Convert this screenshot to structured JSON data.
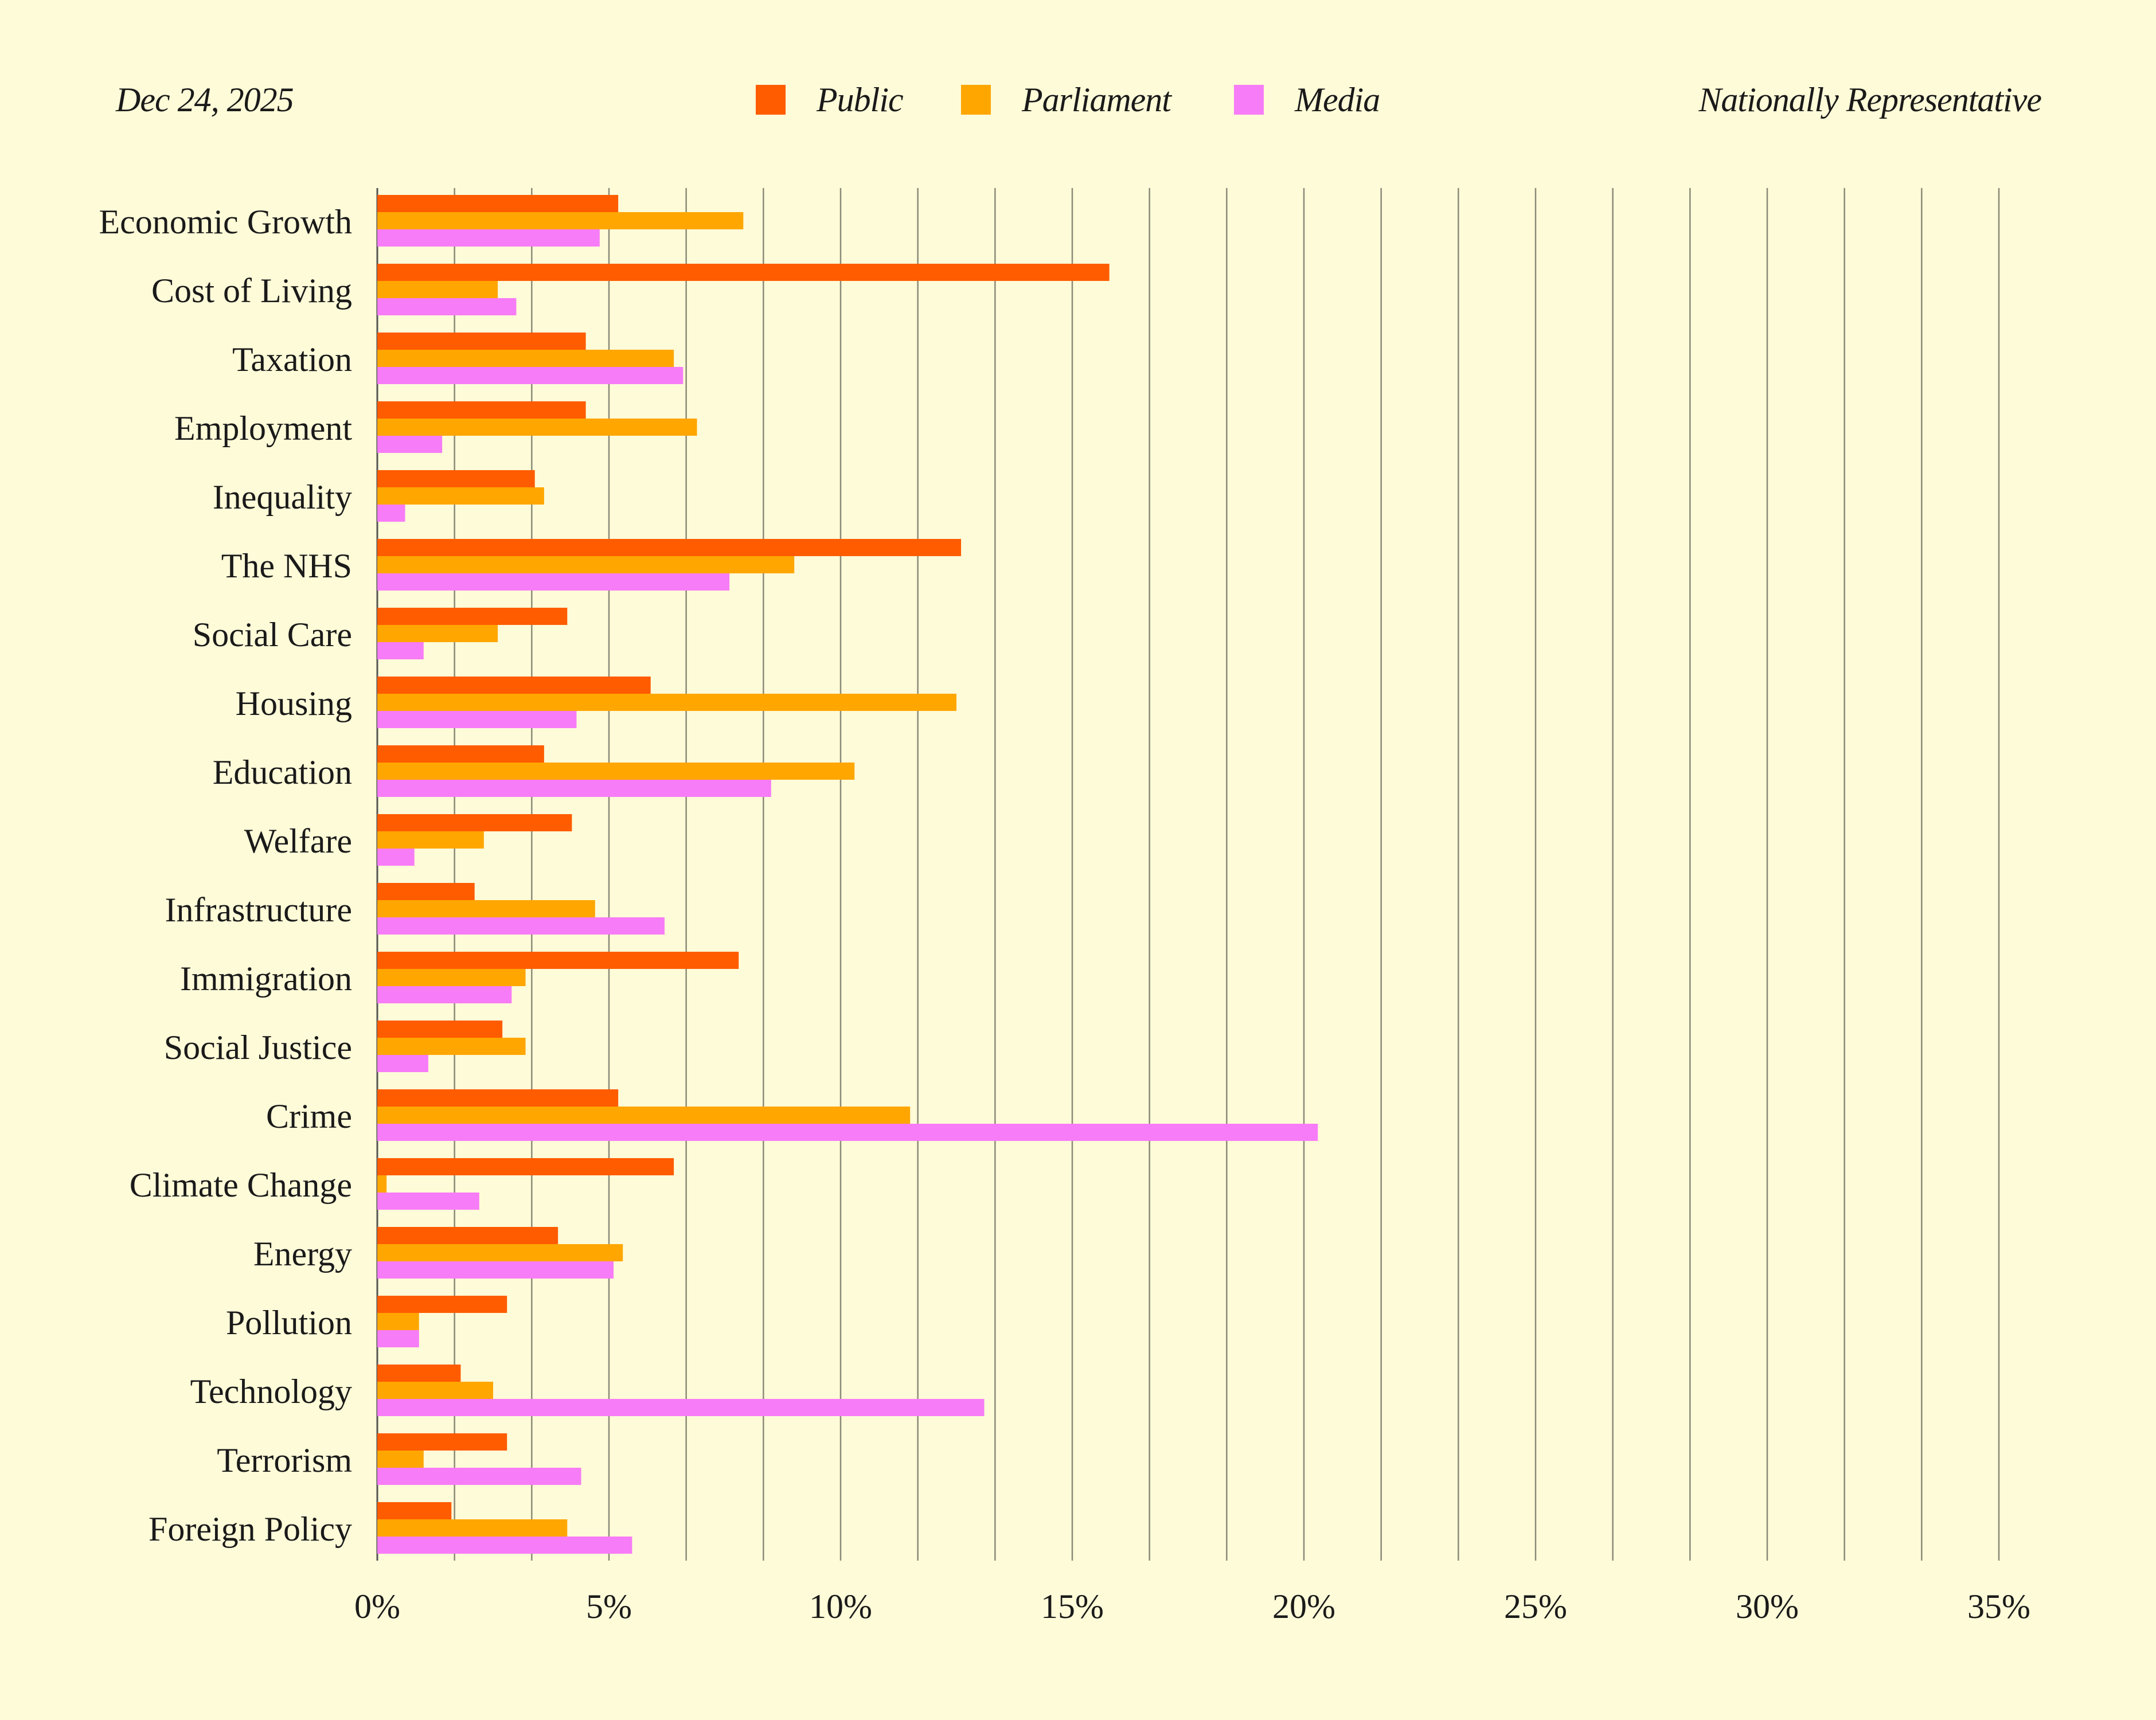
{
  "header": {
    "date": "Dec 24, 2025",
    "sample": "Nationally Representative"
  },
  "legend": [
    {
      "name": "Public",
      "color": "#ff5c00"
    },
    {
      "name": "Parliament",
      "color": "#ffa600"
    },
    {
      "name": "Media",
      "color": "#f77cf7"
    }
  ],
  "chart_data": {
    "type": "bar",
    "orientation": "horizontal",
    "categories": [
      "Economic Growth",
      "Cost of Living",
      "Taxation",
      "Employment",
      "Inequality",
      "The NHS",
      "Social Care",
      "Housing",
      "Education",
      "Welfare",
      "Infrastructure",
      "Immigration",
      "Social Justice",
      "Crime",
      "Climate Change",
      "Energy",
      "Pollution",
      "Technology",
      "Terrorism",
      "Foreign Policy"
    ],
    "series": [
      {
        "name": "Public",
        "color": "#ff5c00",
        "values": [
          5.2,
          15.8,
          4.5,
          4.5,
          3.4,
          12.6,
          4.1,
          5.9,
          3.6,
          4.2,
          2.1,
          7.8,
          2.7,
          5.2,
          6.4,
          3.9,
          2.8,
          1.8,
          2.8,
          1.6
        ]
      },
      {
        "name": "Parliament",
        "color": "#ffa600",
        "values": [
          7.9,
          2.6,
          6.4,
          6.9,
          3.6,
          9.0,
          2.6,
          12.5,
          10.3,
          2.3,
          4.7,
          3.2,
          3.2,
          11.5,
          0.2,
          5.3,
          0.9,
          2.5,
          1.0,
          4.1
        ]
      },
      {
        "name": "Media",
        "color": "#f77cf7",
        "values": [
          4.8,
          3.0,
          6.6,
          1.4,
          0.6,
          7.6,
          1.0,
          4.3,
          8.5,
          0.8,
          6.2,
          2.9,
          1.1,
          20.3,
          2.2,
          5.1,
          0.9,
          13.1,
          4.4,
          5.5
        ]
      }
    ],
    "xlim": [
      0,
      35
    ],
    "xticks": [
      "0%",
      "5%",
      "10%",
      "15%",
      "20%",
      "25%",
      "30%",
      "35%"
    ],
    "minor_gridlines": true,
    "legend_position": "top-center"
  }
}
